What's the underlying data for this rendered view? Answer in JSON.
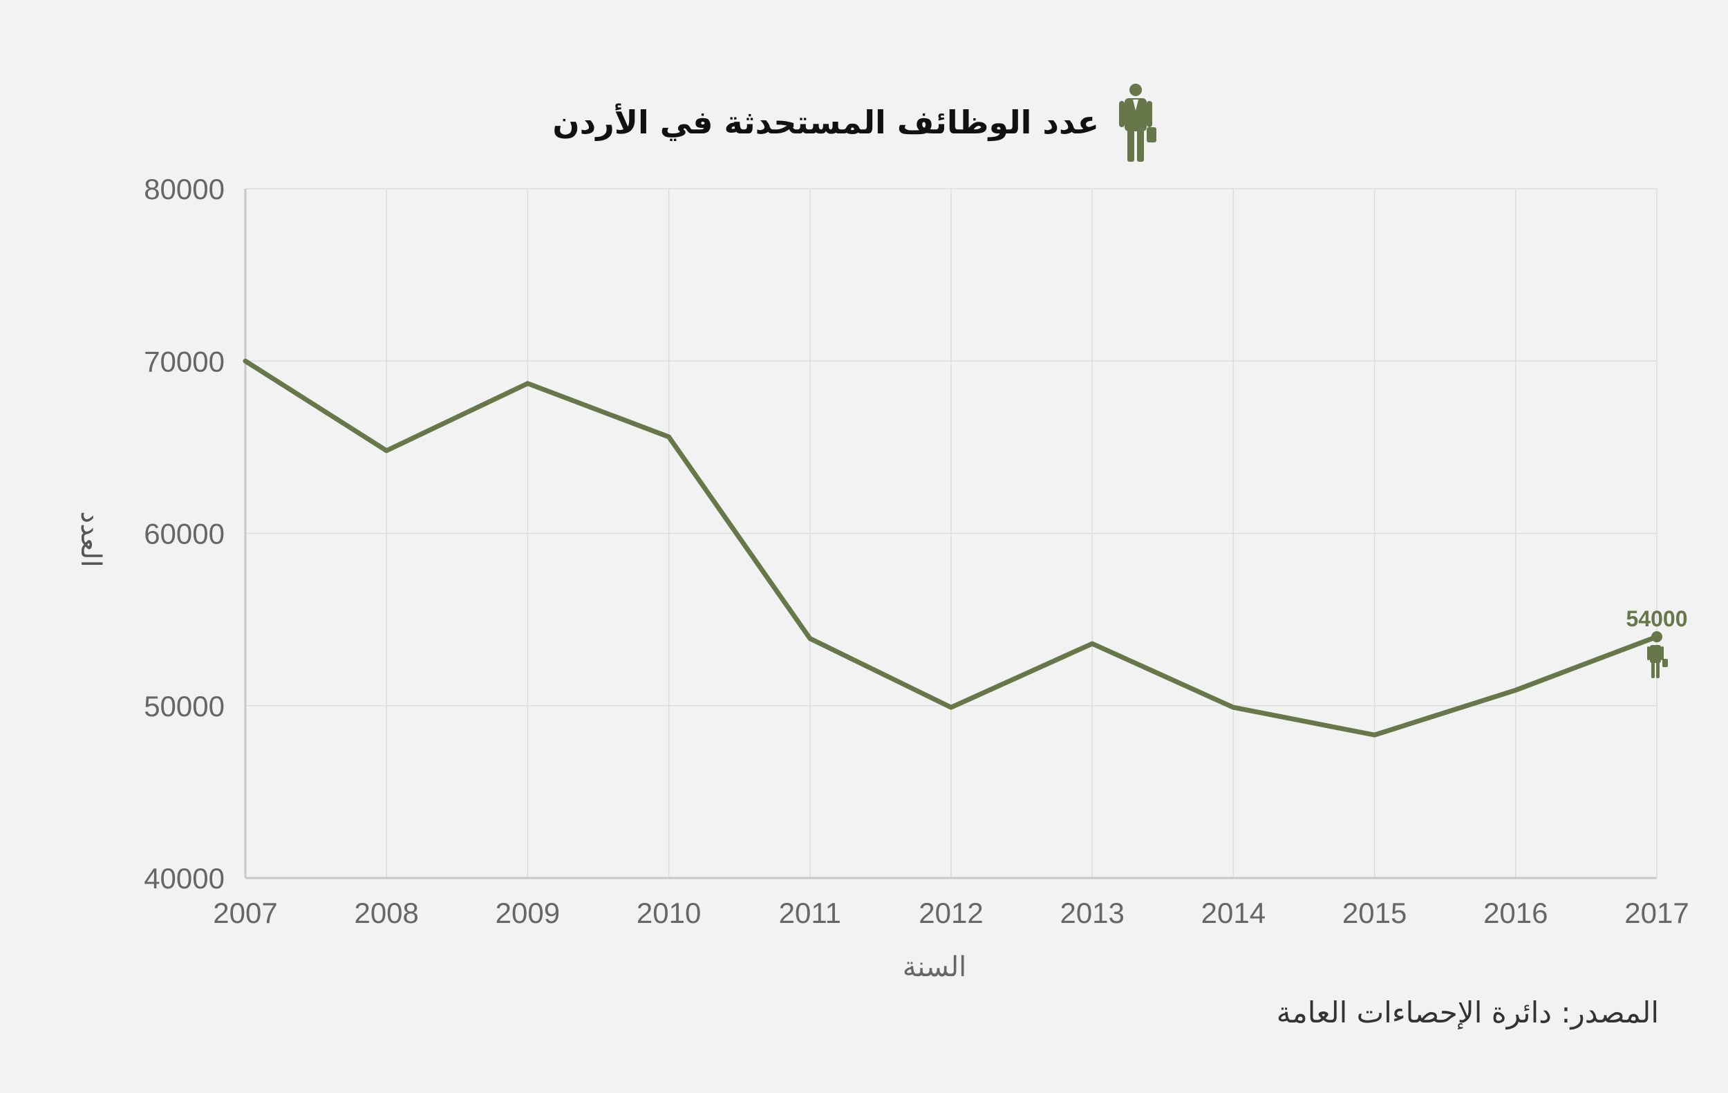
{
  "header": {
    "title": "عدد الوظائف المستحدثة في الأردن",
    "icon": "businessman-icon"
  },
  "footer": {
    "source": "المصدر: دائرة الإحصاءات العامة"
  },
  "colors": {
    "background": "#f2f2f2",
    "line": "#67774a",
    "grid": "#dddddd",
    "axis_text": "#666666",
    "title_text": "#111111"
  },
  "chart_data": {
    "type": "line",
    "title": "عدد الوظائف المستحدثة في الأردن",
    "xlabel": "السنة",
    "ylabel": "العدد",
    "categories": [
      "2007",
      "2008",
      "2009",
      "2010",
      "2011",
      "2012",
      "2013",
      "2014",
      "2015",
      "2016",
      "2017"
    ],
    "series": [
      {
        "values": [
          70000,
          64800,
          68700,
          65600,
          53900,
          49900,
          53600,
          49900,
          48300,
          50900,
          54000
        ]
      }
    ],
    "ylim": [
      40000,
      80000
    ],
    "yticks": [
      40000,
      50000,
      60000,
      70000,
      80000
    ],
    "grid": true,
    "annotation": {
      "text": "54000",
      "category": "2017",
      "value": 54000,
      "icon": "businessman-icon"
    }
  }
}
